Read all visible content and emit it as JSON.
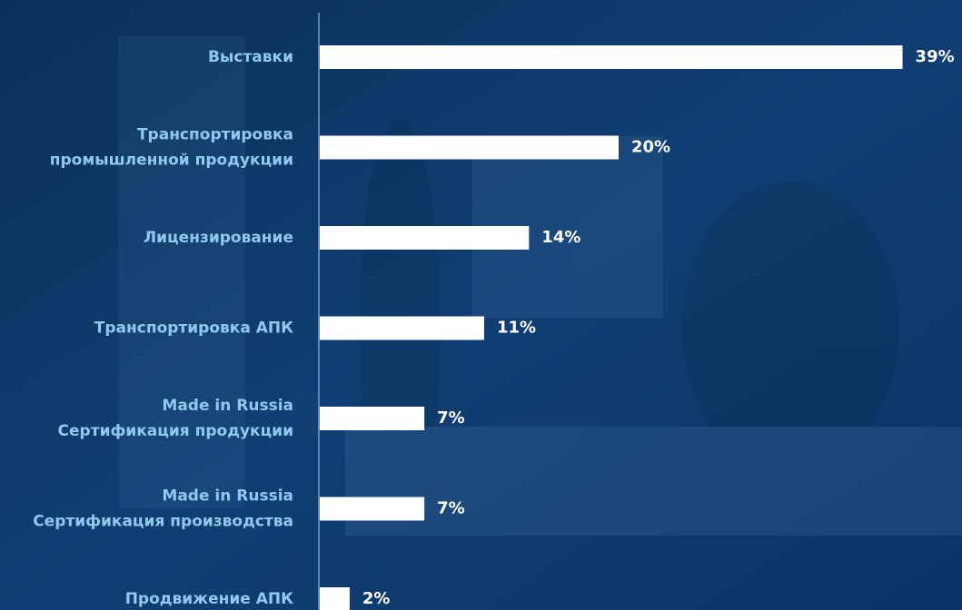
{
  "chart_data": {
    "type": "hbar",
    "categories": [
      [
        "Выставки"
      ],
      [
        "Транспортировка",
        "промышленной продукции"
      ],
      [
        "Лицензирование"
      ],
      [
        "Транспортировка АПК"
      ],
      [
        "Made in Russia",
        "Сертификация продукции"
      ],
      [
        "Made in Russia",
        "Сертификация производства"
      ],
      [
        "Продвижение АПК"
      ]
    ],
    "values": [
      39,
      20,
      14,
      11,
      7,
      7,
      2
    ],
    "value_labels": [
      "39%",
      "20%",
      "14%",
      "11%",
      "7%",
      "7%",
      "2%"
    ],
    "color": "#ffffff"
  }
}
